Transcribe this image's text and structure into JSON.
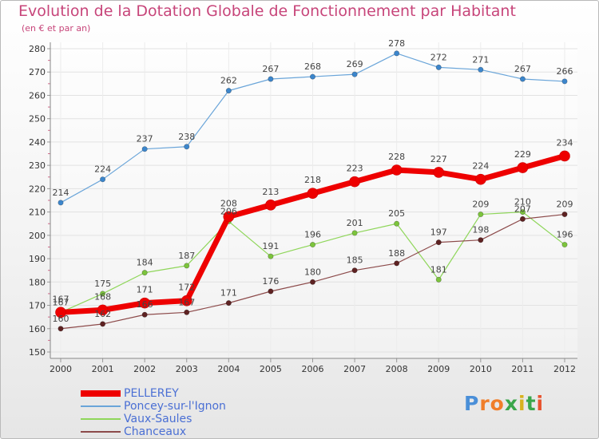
{
  "title": "Evolution de la Dotation Globale de Fonctionnement par Habitant",
  "subtitle": "(en € et par an)",
  "logo": {
    "letters": [
      "P",
      "r",
      "o",
      "x",
      "i",
      "t",
      "i"
    ],
    "colors": [
      "#4a8fd8",
      "#f07e2a",
      "#f07e2a",
      "#3aa64a",
      "#d8b21e",
      "#3aa64a",
      "#e8542f"
    ]
  },
  "chart_data": {
    "type": "line",
    "x": [
      "2000",
      "2001",
      "2002",
      "2003",
      "2004",
      "2005",
      "2006",
      "2007",
      "2008",
      "2009",
      "2010",
      "2011",
      "2012"
    ],
    "ylim": [
      150,
      280
    ],
    "yticks": [
      "150",
      "160",
      "170",
      "180",
      "190",
      "200",
      "210",
      "220",
      "230",
      "240",
      "250",
      "260",
      "270",
      "280"
    ],
    "grid": true,
    "legend_position": "bottom-left",
    "series": [
      {
        "name": "PELLEREY",
        "values": [
          167,
          168,
          171,
          172,
          208,
          213,
          218,
          223,
          228,
          227,
          224,
          229,
          234
        ],
        "labels": [
          "167",
          "168",
          "171",
          "172",
          "208",
          "213",
          "218",
          "223",
          "228",
          "227",
          "224",
          "229",
          "234"
        ],
        "color": "#ee0000",
        "marker_color": "#ee0000"
      },
      {
        "name": "Poncey-sur-l'Ignon",
        "values": [
          214,
          224,
          237,
          238,
          262,
          267,
          268,
          269,
          278,
          272,
          271,
          267,
          266
        ],
        "labels": [
          "214",
          "224",
          "237",
          "238",
          "262",
          "267",
          "268",
          "269",
          "278",
          "272",
          "271",
          "267",
          "266"
        ],
        "color": "#6aa5d9",
        "marker_color": "#3c86cc"
      },
      {
        "name": "Vaux-Saules",
        "values": [
          167,
          175,
          184,
          187,
          206,
          191,
          196,
          201,
          205,
          181,
          209,
          210,
          196
        ],
        "labels": [
          "167",
          "175",
          "184",
          "187",
          "206",
          "191",
          "196",
          "201",
          "205",
          "181",
          "209",
          "210",
          "196"
        ],
        "color": "#8fd65a",
        "marker_color": "#7cc43c"
      },
      {
        "name": "Chanceaux",
        "values": [
          160,
          162,
          166,
          167,
          171,
          176,
          180,
          185,
          188,
          197,
          198,
          207,
          209
        ],
        "labels": [
          "160",
          "162",
          "166",
          "167",
          "171",
          "176",
          "180",
          "185",
          "188",
          "197",
          "198",
          "207",
          "209"
        ],
        "color": "#8c4a4a",
        "marker_color": "#5e2222"
      }
    ]
  }
}
